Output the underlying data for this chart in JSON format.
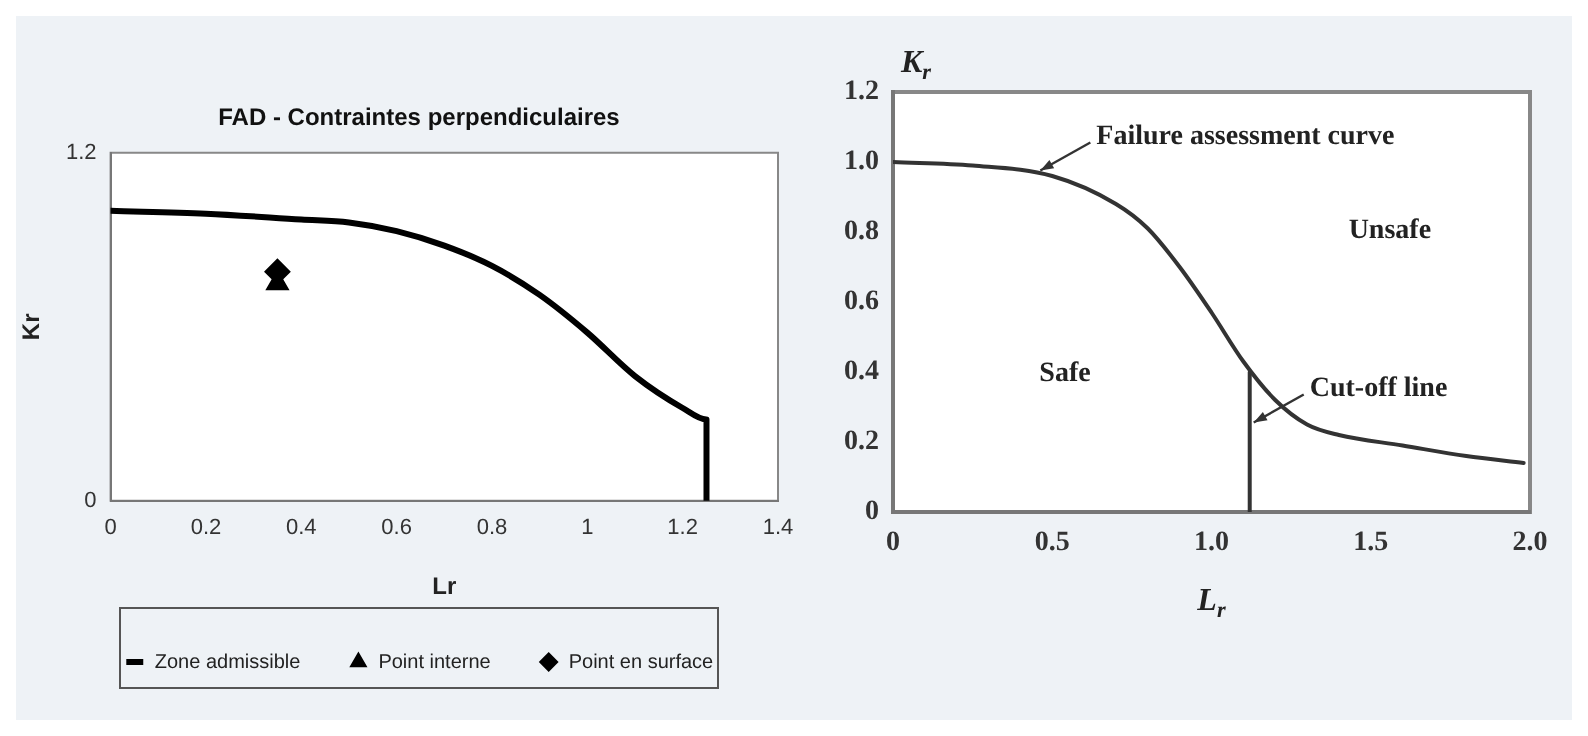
{
  "chart_data": [
    {
      "type": "line",
      "title": "FAD - Contraintes perpendiculaires",
      "xlabel": "Lr",
      "ylabel": "Kr",
      "xlim": [
        0,
        1.4
      ],
      "xticks": [
        0,
        0.2,
        0.4,
        0.6,
        0.8,
        1,
        1.2,
        1.4
      ],
      "ylim": [
        0,
        1.2
      ],
      "yticks": [
        0,
        1.2
      ],
      "grid": false,
      "legend": "bottom",
      "series": [
        {
          "name": "Zone admissible",
          "color": "#000000",
          "marker": "none",
          "x": [
            0,
            0.2,
            0.4,
            0.5,
            0.6,
            0.7,
            0.8,
            0.9,
            1.0,
            1.1,
            1.2,
            1.25,
            1.25
          ],
          "values": [
            1.0,
            0.99,
            0.97,
            0.96,
            0.93,
            0.88,
            0.81,
            0.71,
            0.58,
            0.43,
            0.32,
            0.28,
            0
          ]
        },
        {
          "name": "Point interne",
          "type": "scatter",
          "color": "#000000",
          "marker": "triangle",
          "x": [
            0.35
          ],
          "values": [
            0.75
          ]
        },
        {
          "name": "Point en surface",
          "type": "scatter",
          "color": "#000000",
          "marker": "diamond",
          "x": [
            0.35
          ],
          "values": [
            0.79
          ]
        }
      ]
    },
    {
      "type": "line",
      "xlabel": "L$_{r}$",
      "ylabel": "K$_{r}$",
      "xlim": [
        0,
        2.0
      ],
      "xticks": [
        0,
        0.5,
        {
          "value": 1,
          "label": "1.0"
        },
        1.5,
        {
          "value": 2,
          "label": "2.0"
        }
      ],
      "ylim": [
        0,
        1.2
      ],
      "yticks": [
        0,
        0.2,
        0.4,
        0.6,
        0.8,
        {
          "value": 1,
          "label": "1.0"
        },
        1.2
      ],
      "grid": false,
      "legend": false,
      "annotations": [
        {
          "text": "Failure assessment curve",
          "x": 0.45,
          "y": 0.97
        },
        "Unsafe",
        "Safe",
        {
          "text": "Cut-off line",
          "x": 1.12,
          "y": 0.25
        }
      ],
      "series": [
        {
          "color": "#333333",
          "marker": "none",
          "x": [
            0,
            0.25,
            0.5,
            0.7,
            0.8,
            0.9,
            1.0,
            1.1,
            1.2,
            1.3,
            1.4,
            1.6,
            1.8,
            1.98
          ],
          "values": [
            1.0,
            0.99,
            0.96,
            0.88,
            0.81,
            0.7,
            0.57,
            0.43,
            0.32,
            0.25,
            0.22,
            0.19,
            0.16,
            0.14
          ]
        },
        {
          "color": "#333333",
          "marker": "none",
          "x": [
            1.12,
            1.12
          ],
          "values": [
            0,
            0.4
          ]
        }
      ]
    }
  ]
}
